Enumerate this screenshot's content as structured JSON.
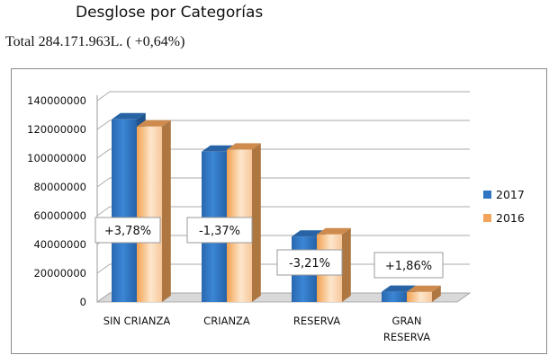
{
  "header": {
    "title": "Desglose por Categorías",
    "total": "Total 284.171.963L. ( +0,64%)"
  },
  "chart_data": {
    "type": "bar",
    "title": "",
    "xlabel": "",
    "ylabel": "",
    "ylim": [
      0,
      140000000
    ],
    "yticks": [
      0,
      20000000,
      40000000,
      60000000,
      80000000,
      100000000,
      120000000,
      140000000
    ],
    "ytick_labels": [
      "0",
      "20000000",
      "40000000",
      "60000000",
      "80000000",
      "100000000",
      "120000000",
      "140000000"
    ],
    "categories": [
      [
        "SIN CRIANZA"
      ],
      [
        "CRIANZA"
      ],
      [
        "RESERVA"
      ],
      [
        "GRAN",
        "RESERVA"
      ]
    ],
    "series": [
      {
        "name": "2017",
        "color": "#2e75c2",
        "values": [
          127000000,
          104500000,
          45500000,
          7100000
        ]
      },
      {
        "name": "2016",
        "color": "#f2a45a",
        "values": [
          122000000,
          106000000,
          47000000,
          7000000
        ]
      }
    ],
    "annotations": [
      "+3,78%",
      "-1,37%",
      "-3,21%",
      "+1,86%"
    ],
    "grid": true,
    "legend": "right"
  }
}
